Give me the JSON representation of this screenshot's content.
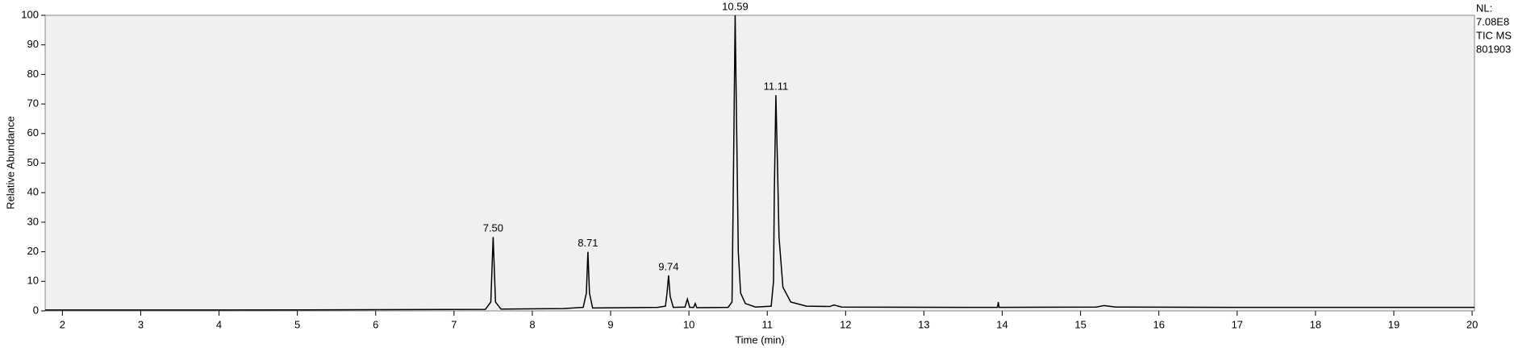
{
  "chart_data": {
    "type": "line",
    "x_label": "Time (min)",
    "y_label": "Relative Abundance",
    "info": [
      "NL:",
      "7.08E8",
      "TIC MS",
      "801903"
    ],
    "x": [
      1.78,
      2.5,
      4,
      6,
      7.4,
      7.47,
      7.5,
      7.53,
      7.6,
      8.4,
      8.65,
      8.69,
      8.71,
      8.73,
      8.77,
      9.6,
      9.7,
      9.72,
      9.74,
      9.76,
      9.8,
      9.95,
      9.98,
      10.01,
      10.06,
      10.08,
      10.1,
      10.5,
      10.55,
      10.57,
      10.59,
      10.61,
      10.63,
      10.66,
      10.72,
      10.85,
      11.05,
      11.08,
      11.09,
      11.11,
      11.13,
      11.15,
      11.2,
      11.3,
      11.5,
      11.8,
      11.85,
      11.95,
      13.5,
      13.94,
      13.95,
      13.96,
      15.2,
      15.3,
      15.45,
      17,
      20.03
    ],
    "series": [
      {
        "color": "#000000",
        "values": [
          0.3,
          0.3,
          0.3,
          0.4,
          0.5,
          3,
          25,
          3,
          0.6,
          0.8,
          1.2,
          6,
          20,
          6,
          1,
          1.2,
          1.6,
          6,
          12,
          5,
          1.2,
          1.3,
          4,
          1.2,
          1.2,
          2.5,
          1.1,
          1.2,
          3,
          50,
          100,
          60,
          20,
          6,
          2.5,
          1.3,
          1.6,
          10,
          40,
          73,
          50,
          25,
          8,
          3,
          1.6,
          1.5,
          2,
          1.3,
          1.2,
          1.2,
          3,
          1.2,
          1.3,
          1.8,
          1.3,
          1.2,
          1.2
        ]
      }
    ],
    "peaks": [
      {
        "x": 7.5,
        "y": 25,
        "label": "7.50"
      },
      {
        "x": 8.71,
        "y": 20,
        "label": "8.71"
      },
      {
        "x": 9.74,
        "y": 12,
        "label": "9.74"
      },
      {
        "x": 10.59,
        "y": 100,
        "label": "10.59"
      },
      {
        "x": 11.11,
        "y": 73,
        "label": "11.11"
      }
    ],
    "xlim": [
      1.78,
      20.03
    ],
    "ylim": [
      0,
      100
    ],
    "xticks": [
      2,
      3,
      4,
      5,
      6,
      7,
      8,
      9,
      10,
      11,
      12,
      13,
      14,
      15,
      16,
      17,
      18,
      19,
      20
    ],
    "yticks": [
      0,
      10,
      20,
      30,
      40,
      50,
      60,
      70,
      80,
      90,
      100
    ]
  }
}
